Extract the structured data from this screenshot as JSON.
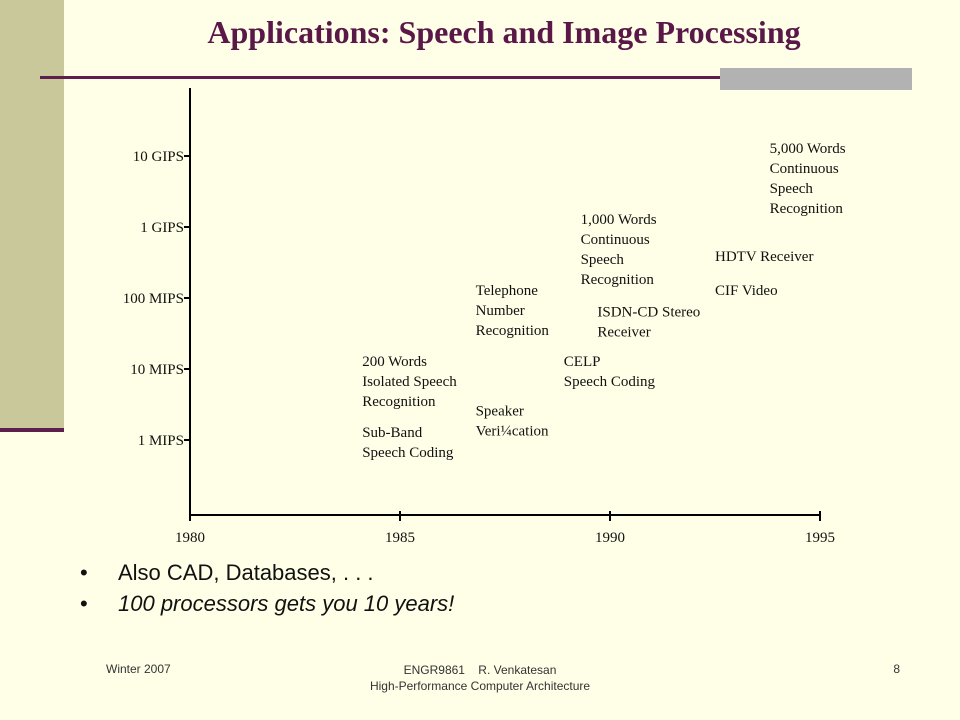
{
  "slide": {
    "title": "Applications: Speech and Image Processing"
  },
  "chart_data": {
    "type": "scatter",
    "title": "",
    "xlabel": "",
    "ylabel": "",
    "x_ticks": [
      "1980",
      "1985",
      "1990",
      "1995"
    ],
    "y_ticks": [
      "1 MIPS",
      "10 MIPS",
      "100 MIPS",
      "1 GIPS",
      "10 GIPS"
    ],
    "xlim": [
      1980,
      1995
    ],
    "ylim_log_mips": [
      0.1,
      100000
    ],
    "y_scale": "log",
    "points": [
      {
        "x": 1984.1,
        "y_mips": 1,
        "label": [
          "Sub-Band",
          "Speech Coding"
        ]
      },
      {
        "x": 1984.1,
        "y_mips": 10,
        "label": [
          "200 Words",
          "Isolated Speech",
          "Recognition"
        ]
      },
      {
        "x": 1986.8,
        "y_mips": 2,
        "label": [
          "Speaker",
          "Veri¼cation"
        ]
      },
      {
        "x": 1986.8,
        "y_mips": 100,
        "label": [
          "Telephone",
          "Number",
          "Recognition"
        ]
      },
      {
        "x": 1988.9,
        "y_mips": 10,
        "label": [
          "CELP",
          "Speech Coding"
        ]
      },
      {
        "x": 1989.7,
        "y_mips": 50,
        "label": [
          "ISDN-CD Stereo",
          "Receiver"
        ]
      },
      {
        "x": 1989.3,
        "y_mips": 1000,
        "label": [
          "1,000 Words",
          "Continuous",
          "Speech",
          "Recognition"
        ]
      },
      {
        "x": 1992.5,
        "y_mips": 100,
        "label": [
          "CIF Video"
        ]
      },
      {
        "x": 1992.5,
        "y_mips": 300,
        "label": [
          "HDTV Receiver"
        ]
      },
      {
        "x": 1993.8,
        "y_mips": 10000,
        "label": [
          "5,000 Words",
          "Continuous",
          "Speech",
          "Recognition"
        ]
      }
    ],
    "grid": false,
    "legend": "none"
  },
  "bullets": [
    {
      "text": "Also CAD, Databases, . . .",
      "italic": false
    },
    {
      "text": "100 processors gets you 10 years!",
      "italic": true
    }
  ],
  "footer": {
    "left": "Winter 2007",
    "center_line1": "ENGR9861    R. Venkatesan",
    "center_line2": "High-Performance Computer Architecture",
    "page": "8"
  },
  "colors": {
    "title": "#5A1848",
    "accent_bar": "#C9C89A",
    "rule": "#5E1E4E",
    "background": "#FFFFE8"
  }
}
